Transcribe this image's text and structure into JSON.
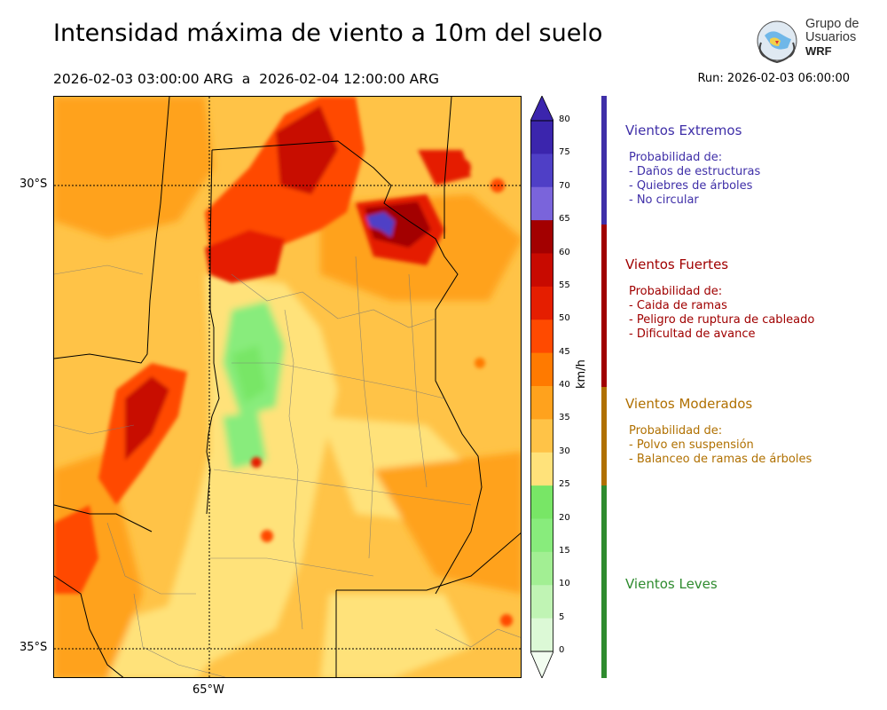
{
  "header": {
    "title": "Intensidad máxima de viento a 10m del suelo",
    "period": "2026-02-03 03:00:00 ARG  a  2026-02-04 12:00:00 ARG",
    "run": "Run: 2026-02-03 06:00:00"
  },
  "logo": {
    "line1": "Grupo de",
    "line2": "Usuarios",
    "line3": "WRF"
  },
  "map": {
    "lat_labels": [
      "30°S",
      "35°S"
    ],
    "lon_labels": [
      "65°W"
    ]
  },
  "colorbar": {
    "unit": "km/h",
    "ticks": [
      "80",
      "75",
      "70",
      "65",
      "60",
      "55",
      "50",
      "45",
      "40",
      "35",
      "30",
      "25",
      "20",
      "15",
      "10",
      "5",
      "0"
    ],
    "colors": {
      "0": "#f2fdf0",
      "5": "#dcf9d6",
      "10": "#c0f4b4",
      "15": "#a2ef93",
      "20": "#88ec7c",
      "25": "#78e666",
      "30": "#ffe27a",
      "35": "#ffc347",
      "40": "#ffa21d",
      "45": "#ff7a00",
      "50": "#ff4a00",
      "55": "#e51e00",
      "60": "#c80a00",
      "65": "#a30000",
      "70": "#7a64db",
      "75": "#4f3fc6",
      "80": "#3b25ad"
    }
  },
  "categories": [
    {
      "title": "Vientos Extremos",
      "color": "#3f2fa8",
      "items": [
        "Probabilidad de:",
        "- Daños de estructuras",
        "- Quiebres de árboles",
        "- No circular"
      ]
    },
    {
      "title": "Vientos Fuertes",
      "color": "#a00000",
      "items": [
        "Probabilidad de:",
        "- Caida de ramas",
        "- Peligro de ruptura de cableado",
        "- Dificultad de avance"
      ]
    },
    {
      "title": "Vientos Moderados",
      "color": "#b07000",
      "items": [
        "Probabilidad de:",
        "- Polvo en suspensión",
        "- Balanceo de ramas de árboles"
      ]
    },
    {
      "title": "Vientos Leves",
      "color": "#2e8b2e",
      "items": []
    }
  ]
}
